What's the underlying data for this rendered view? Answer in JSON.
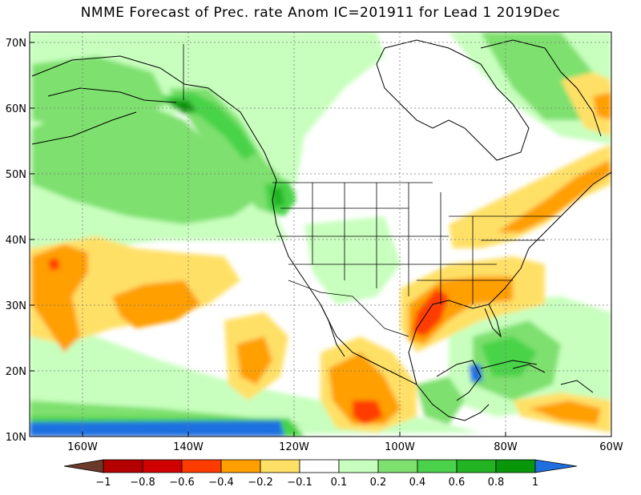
{
  "title": "NMME Forecast of Prec. rate Anom IC=201911 for Lead 1 2019Dec",
  "map": {
    "lon_range": [
      -170,
      -60
    ],
    "lat_range": [
      10,
      72
    ],
    "lat_ticks": [
      {
        "value": 70,
        "label": "70N"
      },
      {
        "value": 60,
        "label": "60N"
      },
      {
        "value": 50,
        "label": "50N"
      },
      {
        "value": 40,
        "label": "40N"
      },
      {
        "value": 30,
        "label": "30N"
      },
      {
        "value": 20,
        "label": "20N"
      },
      {
        "value": 10,
        "label": "10N"
      }
    ],
    "lon_ticks": [
      {
        "value": -160,
        "label": "160W"
      },
      {
        "value": -140,
        "label": "140W"
      },
      {
        "value": -120,
        "label": "120W"
      },
      {
        "value": -100,
        "label": "100W"
      },
      {
        "value": -80,
        "label": "80W"
      },
      {
        "value": -60,
        "label": "60W"
      }
    ],
    "grid": "dotted"
  },
  "colorbar": {
    "levels": [
      "−1",
      "−0.8",
      "−0.6",
      "−0.4",
      "−0.2",
      "−0.1",
      "0.1",
      "0.2",
      "0.4",
      "0.6",
      "0.8",
      "1"
    ],
    "colors": [
      "#6b3a2a",
      "#b40000",
      "#d10000",
      "#ff3c00",
      "#ff9f00",
      "#ffe066",
      "#ffffff",
      "#c8ffbe",
      "#7ee06e",
      "#4ad34a",
      "#22b422",
      "#0a960a",
      "#1f6fe0"
    ]
  }
}
